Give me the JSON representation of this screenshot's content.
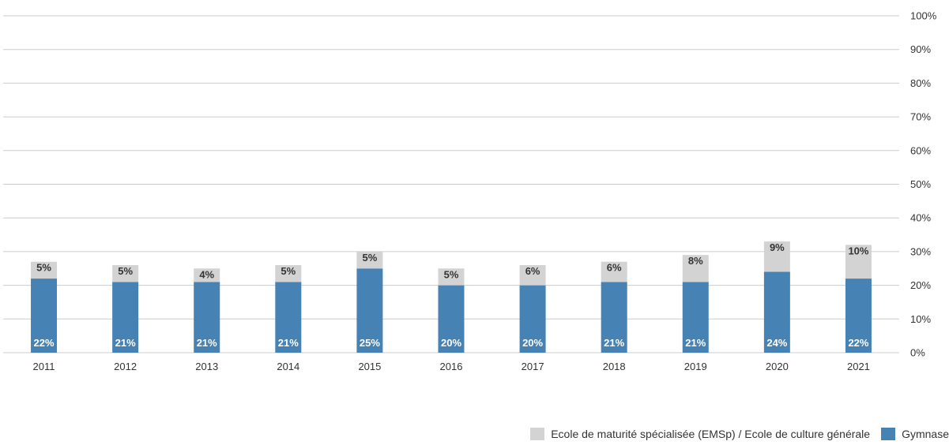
{
  "chart_data": {
    "type": "bar",
    "stacked": true,
    "categories": [
      "2011",
      "2012",
      "2013",
      "2014",
      "2015",
      "2016",
      "2017",
      "2018",
      "2019",
      "2020",
      "2021"
    ],
    "series": [
      {
        "name": "Gymnase",
        "color": "#4682b4",
        "values": [
          22,
          21,
          21,
          21,
          25,
          20,
          20,
          21,
          21,
          24,
          22
        ],
        "labels": [
          "22%",
          "21%",
          "21%",
          "21%",
          "25%",
          "20%",
          "20%",
          "21%",
          "21%",
          "24%",
          "22%"
        ]
      },
      {
        "name": "Ecole de maturité spécialisée (EMSp) / Ecole de culture générale",
        "color": "#d3d3d3",
        "values": [
          5,
          5,
          4,
          5,
          5,
          5,
          6,
          6,
          8,
          9,
          10
        ],
        "labels": [
          "5%",
          "5%",
          "4%",
          "5%",
          "5%",
          "5%",
          "6%",
          "6%",
          "8%",
          "9%",
          "10%"
        ]
      }
    ],
    "y_ticks": [
      "0%",
      "10%",
      "20%",
      "30%",
      "40%",
      "50%",
      "60%",
      "70%",
      "80%",
      "90%",
      "100%"
    ],
    "ylim": [
      0,
      100
    ],
    "y_axis_side": "right",
    "grid": true,
    "legend_position": "bottom-right",
    "label_colors": {
      "Gymnase": "#ffffff",
      "EMSp": "#333333"
    },
    "grid_color": "#cccccc"
  },
  "legend": {
    "items": [
      {
        "name": "Ecole de maturité spécialisée (EMSp) / Ecole de culture générale",
        "color": "#d3d3d3"
      },
      {
        "name": "Gymnase",
        "color": "#4682b4"
      }
    ]
  }
}
